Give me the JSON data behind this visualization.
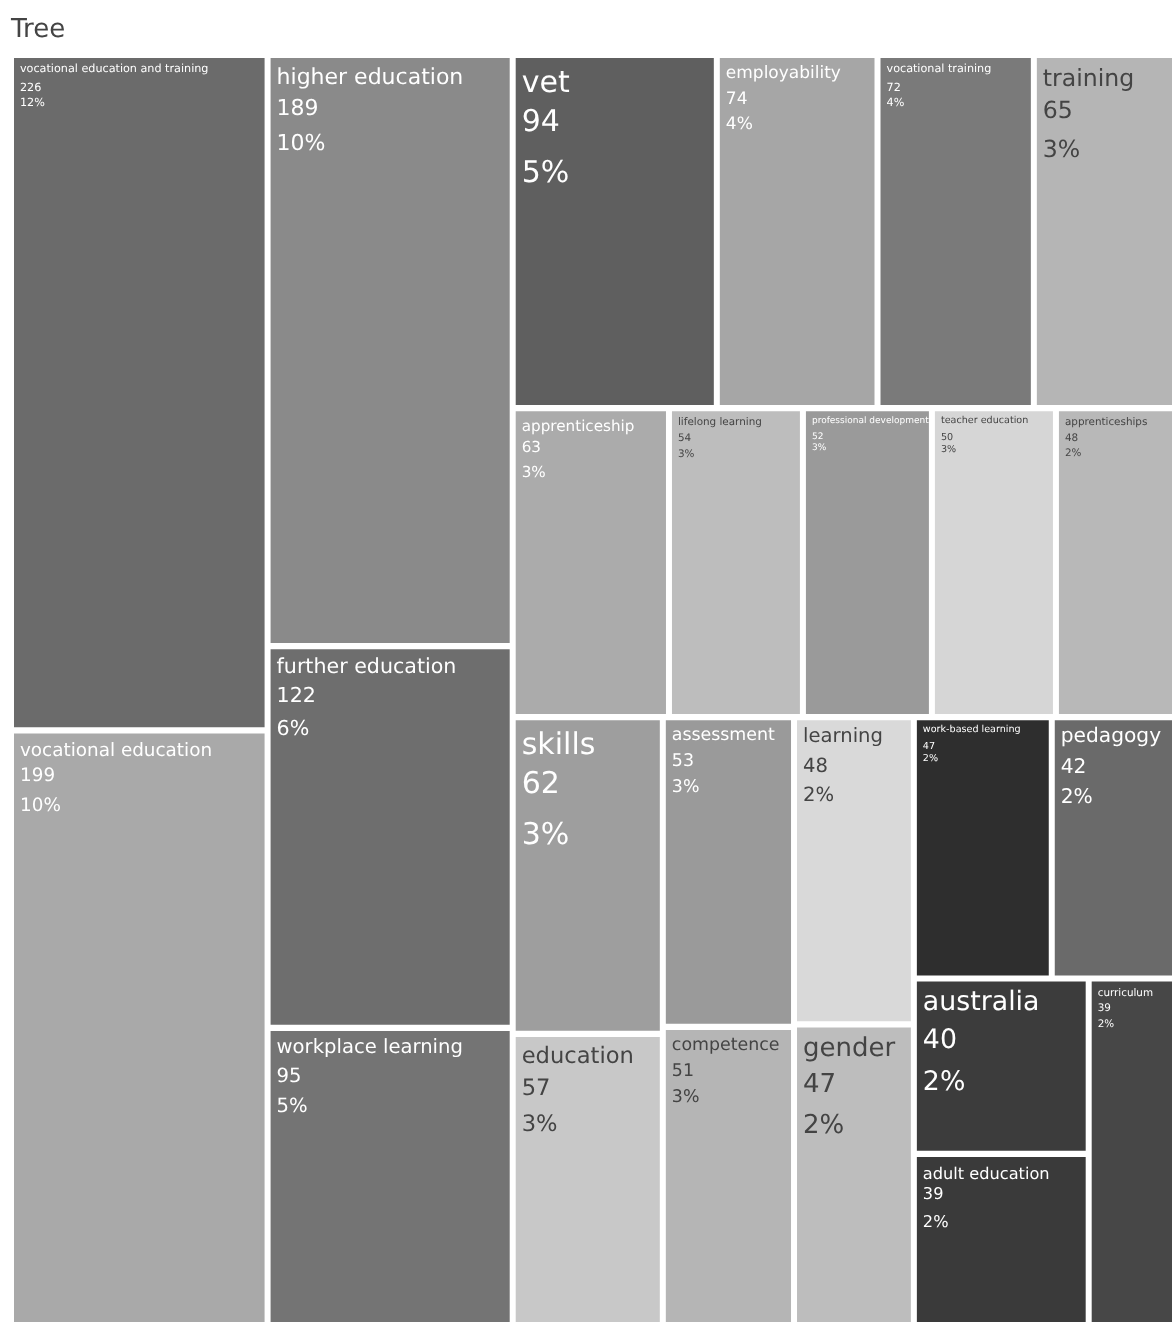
{
  "chart_data": {
    "type": "other",
    "title": "Tree",
    "categories": [
      "vocational education and training",
      "vocational education",
      "higher education",
      "further education",
      "workplace learning",
      "vet",
      "employability",
      "vocational training",
      "training",
      "apprenticeship",
      "lifelong learning",
      "professional development",
      "teacher education",
      "apprenticeships",
      "skills",
      "education",
      "assessment",
      "competence",
      "learning",
      "gender",
      "work-based learning",
      "pedagogy",
      "australia",
      "adult education",
      "curriculum"
    ],
    "values": [
      226,
      199,
      189,
      122,
      95,
      94,
      74,
      72,
      65,
      63,
      54,
      52,
      50,
      48,
      62,
      57,
      53,
      51,
      48,
      47,
      47,
      42,
      40,
      39,
      39
    ],
    "colors": [
      "#6b6b6b",
      "#a9a9a9",
      "#8a8a8a",
      "#6e6e6e",
      "#747474",
      "#5f5f5f",
      "#a6a6a6",
      "#7a7a7a",
      "#b5b5b5",
      "#ababab",
      "#bdbdbd",
      "#9a9a9a",
      "#d6d6d6",
      "#b8b8b8",
      "#9e9e9e",
      "#c8c8c8",
      "#9a9a9a",
      "#b5b5b5",
      "#d9d9d9",
      "#bdbdbd",
      "#2e2e2e",
      "#6a6a6a",
      "#3c3c3c",
      "#3a3a3a",
      "#474747"
    ],
    "data_labels": true,
    "annotations": [
      {
        "text": "12%",
        "x": "vocational education and training"
      },
      {
        "text": "10%",
        "x": "vocational education"
      },
      {
        "text": "10%",
        "x": "higher education"
      },
      {
        "text": "6%",
        "x": "further education"
      },
      {
        "text": "5%",
        "x": "workplace learning"
      },
      {
        "text": "5%",
        "x": "vet"
      },
      {
        "text": "4%",
        "x": "employability"
      },
      {
        "text": "4%",
        "x": "vocational training"
      },
      {
        "text": "3%",
        "x": "training"
      },
      {
        "text": "3%",
        "x": "apprenticeship"
      },
      {
        "text": "3%",
        "x": "lifelong learning"
      },
      {
        "text": "3%",
        "x": "professional development"
      },
      {
        "text": "3%",
        "x": "teacher education"
      },
      {
        "text": "2%",
        "x": "apprenticeships"
      },
      {
        "text": "3%",
        "x": "skills"
      },
      {
        "text": "3%",
        "x": "education"
      },
      {
        "text": "3%",
        "x": "assessment"
      },
      {
        "text": "3%",
        "x": "competence"
      },
      {
        "text": "2%",
        "x": "learning"
      },
      {
        "text": "2%",
        "x": "gender"
      },
      {
        "text": "2%",
        "x": "work-based learning"
      },
      {
        "text": "2%",
        "x": "pedagogy"
      },
      {
        "text": "2%",
        "x": "australia"
      },
      {
        "text": "2%",
        "x": "adult education"
      },
      {
        "text": "2%",
        "x": "curriculum"
      }
    ]
  }
}
